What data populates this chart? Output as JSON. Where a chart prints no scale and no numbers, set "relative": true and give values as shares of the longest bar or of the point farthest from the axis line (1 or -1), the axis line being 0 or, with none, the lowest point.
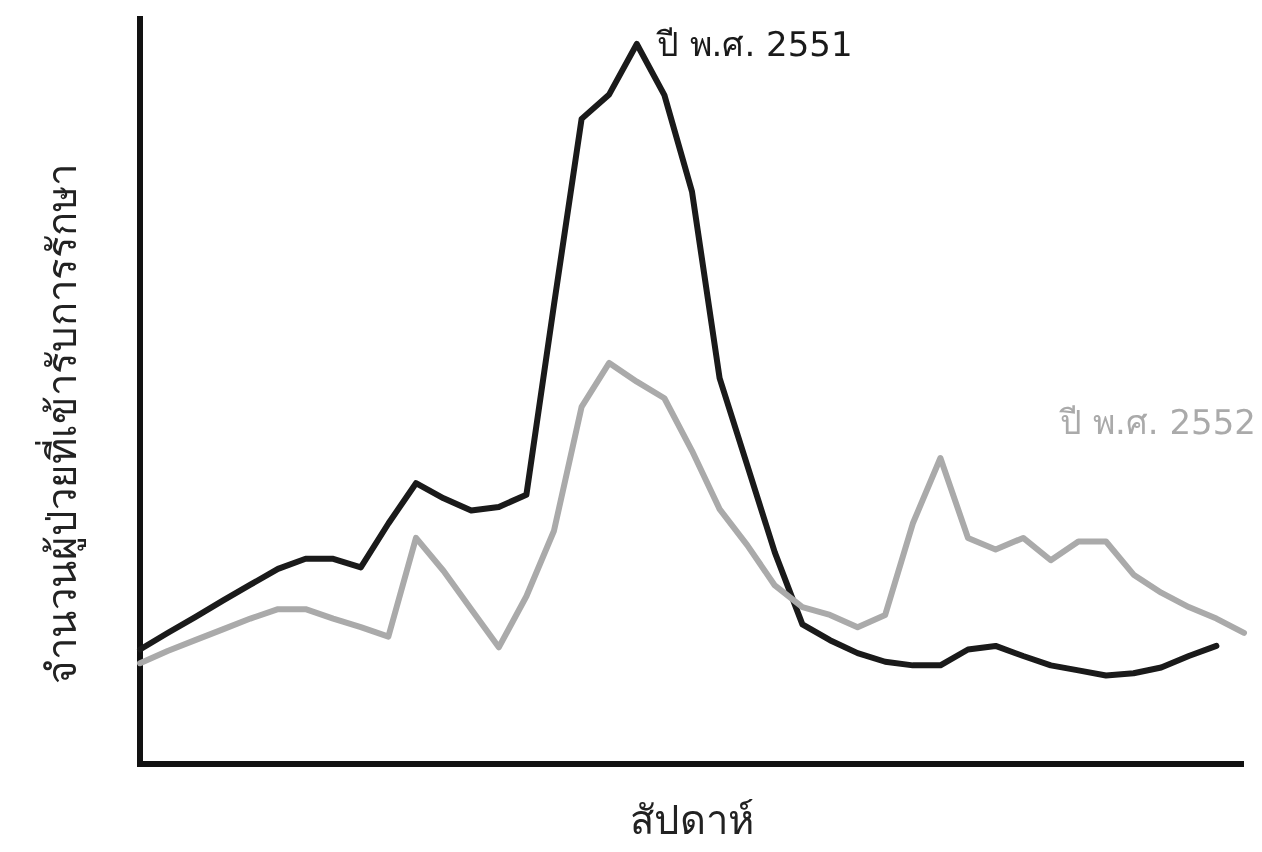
{
  "chart_data": {
    "type": "line",
    "relative": true,
    "xlabel": "สัปดาห์",
    "ylabel": "จำนวนผู้ป่วยที่เข้ารับการรักษา",
    "categories": [
      null,
      null,
      null,
      null,
      null,
      null,
      null,
      null,
      null,
      null,
      null,
      null,
      null,
      null,
      null,
      null,
      null,
      null,
      null,
      null,
      null,
      null,
      null,
      null,
      null,
      null,
      null,
      null,
      null,
      null,
      null,
      null,
      null,
      null,
      null,
      null,
      null,
      null,
      null,
      null,
      null
    ],
    "series": [
      {
        "name": "ปี พ.ศ. 2551",
        "color": "#1a1a1a",
        "values": [
          0.159,
          0.182,
          0.204,
          0.227,
          0.249,
          0.271,
          0.285,
          0.285,
          0.273,
          0.334,
          0.39,
          0.369,
          0.352,
          0.357,
          0.374,
          0.638,
          0.896,
          0.93,
          1.0,
          0.929,
          0.795,
          0.536,
          0.415,
          0.294,
          0.194,
          0.172,
          0.154,
          0.142,
          0.137,
          0.137,
          0.159,
          0.164,
          0.15,
          0.137,
          0.13,
          0.123,
          0.126,
          0.134,
          0.15,
          0.164,
          null
        ]
      },
      {
        "name": "ปี พ.ศ. 2552",
        "color": "#aaaaaa",
        "values": [
          0.14,
          0.157,
          0.172,
          0.187,
          0.202,
          0.215,
          0.215,
          0.202,
          0.19,
          0.177,
          0.314,
          0.268,
          0.215,
          0.162,
          0.233,
          0.324,
          0.496,
          0.557,
          0.531,
          0.508,
          0.435,
          0.354,
          0.304,
          0.248,
          0.218,
          0.207,
          0.19,
          0.207,
          0.334,
          0.425,
          0.314,
          0.298,
          0.314,
          0.283,
          0.309,
          0.309,
          0.263,
          0.238,
          0.218,
          0.202,
          0.182
        ]
      }
    ],
    "marker": "none",
    "line_style": "solid"
  }
}
